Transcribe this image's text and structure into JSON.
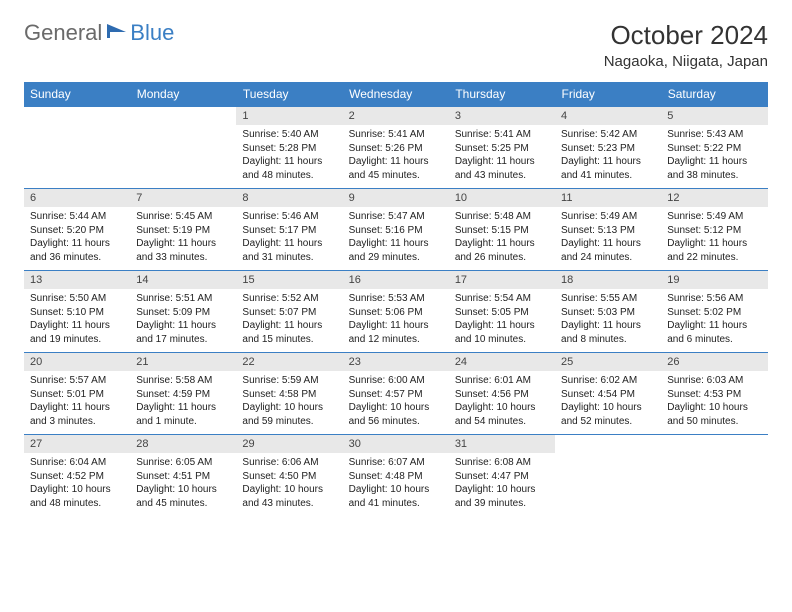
{
  "logo": {
    "part1": "General",
    "part2": "Blue"
  },
  "title": "October 2024",
  "location": "Nagaoka, Niigata, Japan",
  "headers": [
    "Sunday",
    "Monday",
    "Tuesday",
    "Wednesday",
    "Thursday",
    "Friday",
    "Saturday"
  ],
  "colors": {
    "header_bg": "#3b7fc4",
    "header_fg": "#ffffff",
    "daynum_bg": "#e8e8e8",
    "border": "#3b7fc4",
    "logo_gray": "#6a6a6a",
    "logo_blue": "#3b7fc4"
  },
  "weeks": [
    [
      null,
      null,
      {
        "n": "1",
        "sr": "Sunrise: 5:40 AM",
        "ss": "Sunset: 5:28 PM",
        "dl": "Daylight: 11 hours and 48 minutes."
      },
      {
        "n": "2",
        "sr": "Sunrise: 5:41 AM",
        "ss": "Sunset: 5:26 PM",
        "dl": "Daylight: 11 hours and 45 minutes."
      },
      {
        "n": "3",
        "sr": "Sunrise: 5:41 AM",
        "ss": "Sunset: 5:25 PM",
        "dl": "Daylight: 11 hours and 43 minutes."
      },
      {
        "n": "4",
        "sr": "Sunrise: 5:42 AM",
        "ss": "Sunset: 5:23 PM",
        "dl": "Daylight: 11 hours and 41 minutes."
      },
      {
        "n": "5",
        "sr": "Sunrise: 5:43 AM",
        "ss": "Sunset: 5:22 PM",
        "dl": "Daylight: 11 hours and 38 minutes."
      }
    ],
    [
      {
        "n": "6",
        "sr": "Sunrise: 5:44 AM",
        "ss": "Sunset: 5:20 PM",
        "dl": "Daylight: 11 hours and 36 minutes."
      },
      {
        "n": "7",
        "sr": "Sunrise: 5:45 AM",
        "ss": "Sunset: 5:19 PM",
        "dl": "Daylight: 11 hours and 33 minutes."
      },
      {
        "n": "8",
        "sr": "Sunrise: 5:46 AM",
        "ss": "Sunset: 5:17 PM",
        "dl": "Daylight: 11 hours and 31 minutes."
      },
      {
        "n": "9",
        "sr": "Sunrise: 5:47 AM",
        "ss": "Sunset: 5:16 PM",
        "dl": "Daylight: 11 hours and 29 minutes."
      },
      {
        "n": "10",
        "sr": "Sunrise: 5:48 AM",
        "ss": "Sunset: 5:15 PM",
        "dl": "Daylight: 11 hours and 26 minutes."
      },
      {
        "n": "11",
        "sr": "Sunrise: 5:49 AM",
        "ss": "Sunset: 5:13 PM",
        "dl": "Daylight: 11 hours and 24 minutes."
      },
      {
        "n": "12",
        "sr": "Sunrise: 5:49 AM",
        "ss": "Sunset: 5:12 PM",
        "dl": "Daylight: 11 hours and 22 minutes."
      }
    ],
    [
      {
        "n": "13",
        "sr": "Sunrise: 5:50 AM",
        "ss": "Sunset: 5:10 PM",
        "dl": "Daylight: 11 hours and 19 minutes."
      },
      {
        "n": "14",
        "sr": "Sunrise: 5:51 AM",
        "ss": "Sunset: 5:09 PM",
        "dl": "Daylight: 11 hours and 17 minutes."
      },
      {
        "n": "15",
        "sr": "Sunrise: 5:52 AM",
        "ss": "Sunset: 5:07 PM",
        "dl": "Daylight: 11 hours and 15 minutes."
      },
      {
        "n": "16",
        "sr": "Sunrise: 5:53 AM",
        "ss": "Sunset: 5:06 PM",
        "dl": "Daylight: 11 hours and 12 minutes."
      },
      {
        "n": "17",
        "sr": "Sunrise: 5:54 AM",
        "ss": "Sunset: 5:05 PM",
        "dl": "Daylight: 11 hours and 10 minutes."
      },
      {
        "n": "18",
        "sr": "Sunrise: 5:55 AM",
        "ss": "Sunset: 5:03 PM",
        "dl": "Daylight: 11 hours and 8 minutes."
      },
      {
        "n": "19",
        "sr": "Sunrise: 5:56 AM",
        "ss": "Sunset: 5:02 PM",
        "dl": "Daylight: 11 hours and 6 minutes."
      }
    ],
    [
      {
        "n": "20",
        "sr": "Sunrise: 5:57 AM",
        "ss": "Sunset: 5:01 PM",
        "dl": "Daylight: 11 hours and 3 minutes."
      },
      {
        "n": "21",
        "sr": "Sunrise: 5:58 AM",
        "ss": "Sunset: 4:59 PM",
        "dl": "Daylight: 11 hours and 1 minute."
      },
      {
        "n": "22",
        "sr": "Sunrise: 5:59 AM",
        "ss": "Sunset: 4:58 PM",
        "dl": "Daylight: 10 hours and 59 minutes."
      },
      {
        "n": "23",
        "sr": "Sunrise: 6:00 AM",
        "ss": "Sunset: 4:57 PM",
        "dl": "Daylight: 10 hours and 56 minutes."
      },
      {
        "n": "24",
        "sr": "Sunrise: 6:01 AM",
        "ss": "Sunset: 4:56 PM",
        "dl": "Daylight: 10 hours and 54 minutes."
      },
      {
        "n": "25",
        "sr": "Sunrise: 6:02 AM",
        "ss": "Sunset: 4:54 PM",
        "dl": "Daylight: 10 hours and 52 minutes."
      },
      {
        "n": "26",
        "sr": "Sunrise: 6:03 AM",
        "ss": "Sunset: 4:53 PM",
        "dl": "Daylight: 10 hours and 50 minutes."
      }
    ],
    [
      {
        "n": "27",
        "sr": "Sunrise: 6:04 AM",
        "ss": "Sunset: 4:52 PM",
        "dl": "Daylight: 10 hours and 48 minutes."
      },
      {
        "n": "28",
        "sr": "Sunrise: 6:05 AM",
        "ss": "Sunset: 4:51 PM",
        "dl": "Daylight: 10 hours and 45 minutes."
      },
      {
        "n": "29",
        "sr": "Sunrise: 6:06 AM",
        "ss": "Sunset: 4:50 PM",
        "dl": "Daylight: 10 hours and 43 minutes."
      },
      {
        "n": "30",
        "sr": "Sunrise: 6:07 AM",
        "ss": "Sunset: 4:48 PM",
        "dl": "Daylight: 10 hours and 41 minutes."
      },
      {
        "n": "31",
        "sr": "Sunrise: 6:08 AM",
        "ss": "Sunset: 4:47 PM",
        "dl": "Daylight: 10 hours and 39 minutes."
      },
      null,
      null
    ]
  ]
}
